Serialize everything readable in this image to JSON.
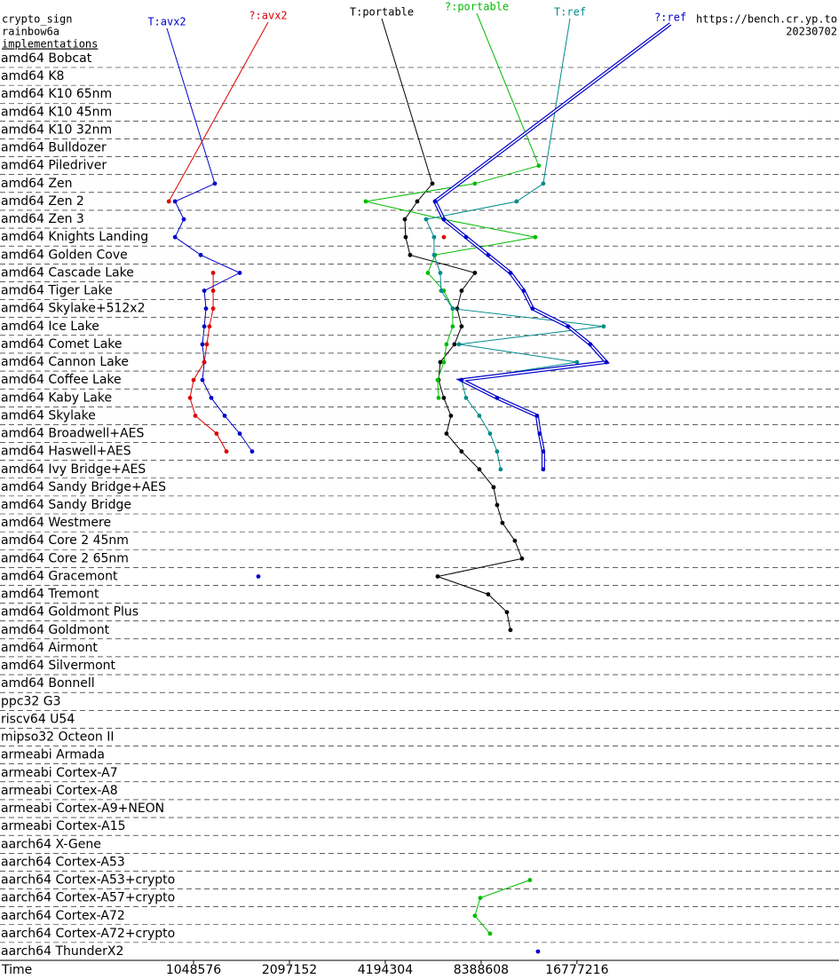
{
  "chart_data": {
    "type": "line",
    "title": "crypto_sign",
    "subtitle": "rainbow6a",
    "ylabel": "implementations",
    "source": "https://bench.cr.yp.to",
    "date": "20230702",
    "xlabel": "Time",
    "xscale": "log",
    "xlim": [
      258600,
      111600000
    ],
    "xticks": [
      1048576,
      2097152,
      4194304,
      8388608,
      16777216
    ],
    "grid": true,
    "categories": [
      "amd64 Bobcat",
      "amd64 K8",
      "amd64 K10 65nm",
      "amd64 K10 45nm",
      "amd64 K10 32nm",
      "amd64 Bulldozer",
      "amd64 Piledriver",
      "amd64 Zen",
      "amd64 Zen 2",
      "amd64 Zen 3",
      "amd64 Knights Landing",
      "amd64 Golden Cove",
      "amd64 Cascade Lake",
      "amd64 Tiger Lake",
      "amd64 Skylake+512x2",
      "amd64 Ice Lake",
      "amd64 Comet Lake",
      "amd64 Cannon Lake",
      "amd64 Coffee Lake",
      "amd64 Kaby Lake",
      "amd64 Skylake",
      "amd64 Broadwell+AES",
      "amd64 Haswell+AES",
      "amd64 Ivy Bridge+AES",
      "amd64 Sandy Bridge+AES",
      "amd64 Sandy Bridge",
      "amd64 Westmere",
      "amd64 Core 2 45nm",
      "amd64 Core 2 65nm",
      "amd64 Gracemont",
      "amd64 Tremont",
      "amd64 Goldmont Plus",
      "amd64 Goldmont",
      "amd64 Airmont",
      "amd64 Silvermont",
      "amd64 Bonnell",
      "ppc32 G3",
      "riscv64 U54",
      "mipso32 Octeon II",
      "armeabi Armada",
      "armeabi Cortex-A7",
      "armeabi Cortex-A8",
      "armeabi Cortex-A9+NEON",
      "armeabi Cortex-A15",
      "aarch64 X-Gene",
      "aarch64 Cortex-A53",
      "aarch64 Cortex-A53+crypto",
      "aarch64 Cortex-A57+crypto",
      "aarch64 Cortex-A72",
      "aarch64 Cortex-A72+crypto",
      "aarch64 ThunderX2"
    ],
    "series": [
      {
        "name": "T:avx2",
        "color": "#0000cc",
        "values": [
          null,
          null,
          null,
          null,
          null,
          null,
          null,
          1223000,
          917000,
          977000,
          917000,
          1104000,
          1464000,
          1133000,
          1147000,
          1133000,
          1118000,
          1133000,
          1118000,
          1192000,
          1313000,
          1464000,
          1601000,
          null,
          null,
          null,
          null,
          null,
          null,
          1675000,
          null,
          null,
          null,
          null,
          null,
          null,
          null,
          null,
          null,
          null,
          null,
          null,
          null,
          null,
          null,
          null,
          null,
          null,
          null,
          null,
          null
        ]
      },
      {
        "name": "?:avx2",
        "color": "#dd0000",
        "values": [
          null,
          null,
          null,
          null,
          null,
          null,
          null,
          null,
          877000,
          null,
          6408000,
          null,
          1208000,
          1208000,
          1208000,
          1176000,
          1154000,
          1133000,
          1048576,
          1022000,
          1062000,
          1238000,
          1330000,
          null,
          null,
          null,
          null,
          null,
          null,
          null,
          null,
          null,
          null,
          null,
          null,
          null,
          null,
          null,
          null,
          null,
          null,
          null,
          null,
          null,
          null,
          null,
          null,
          null,
          null,
          null,
          null
        ]
      },
      {
        "name": "T:portable",
        "color": "#000000",
        "values": [
          null,
          null,
          null,
          null,
          null,
          null,
          null,
          5895000,
          5285000,
          4831000,
          4861000,
          5020000,
          8019000,
          7283000,
          7054000,
          7283000,
          6918000,
          6244000,
          6166000,
          6406000,
          6743000,
          6531000,
          7283000,
          8280000,
          9179000,
          9418000,
          9785000,
          10706000,
          11270000,
          6125000,
          8829000,
          10108000,
          10370000,
          null,
          null,
          null,
          null,
          null,
          null,
          null,
          null,
          null,
          null,
          null,
          null,
          null,
          null,
          null,
          null,
          null,
          null
        ]
      },
      {
        "name": "?:portable",
        "color": "#00bb00",
        "values": [
          null,
          null,
          null,
          null,
          null,
          null,
          12730000,
          8019000,
          3642000,
          6406000,
          12410000,
          6010000,
          5707000,
          6406000,
          6831000,
          6831000,
          6531000,
          6406000,
          6125000,
          6166000,
          null,
          null,
          null,
          null,
          null,
          null,
          null,
          null,
          null,
          null,
          null,
          null,
          null,
          null,
          null,
          null,
          null,
          null,
          null,
          null,
          null,
          null,
          null,
          null,
          null,
          null,
          11937000,
          8336000,
          8019000,
          8946000,
          null
        ]
      },
      {
        "name": "T:ref",
        "color": "#008b8b",
        "values": [
          null,
          null,
          null,
          null,
          null,
          null,
          null,
          13146000,
          10842000,
          5635000,
          5970000,
          5970000,
          6244000,
          6283000,
          6831000,
          20343000,
          7146000,
          16780000,
          7283000,
          7523000,
          8280000,
          8946000,
          9418000,
          9660000,
          null,
          null,
          null,
          null,
          null,
          null,
          null,
          null,
          null,
          null,
          null,
          null,
          null,
          null,
          null,
          null,
          null,
          null,
          null,
          null,
          null,
          null,
          null,
          null,
          null,
          null,
          null
        ]
      },
      {
        "name": "?:ref",
        "color": "#0000cc",
        "line_style": "double",
        "values": [
          null,
          null,
          null,
          null,
          null,
          null,
          null,
          null,
          6010000,
          6406000,
          7523000,
          8829000,
          10370000,
          11415000,
          12171000,
          15730000,
          18472000,
          20740000,
          7283000,
          9418000,
          12568000,
          12813000,
          13146000,
          13146000,
          null,
          null,
          null,
          null,
          null,
          null,
          null,
          null,
          null,
          null,
          null,
          null,
          null,
          null,
          null,
          null,
          null,
          null,
          null,
          null,
          null,
          null,
          null,
          null,
          null,
          null,
          12654000
        ]
      }
    ]
  }
}
